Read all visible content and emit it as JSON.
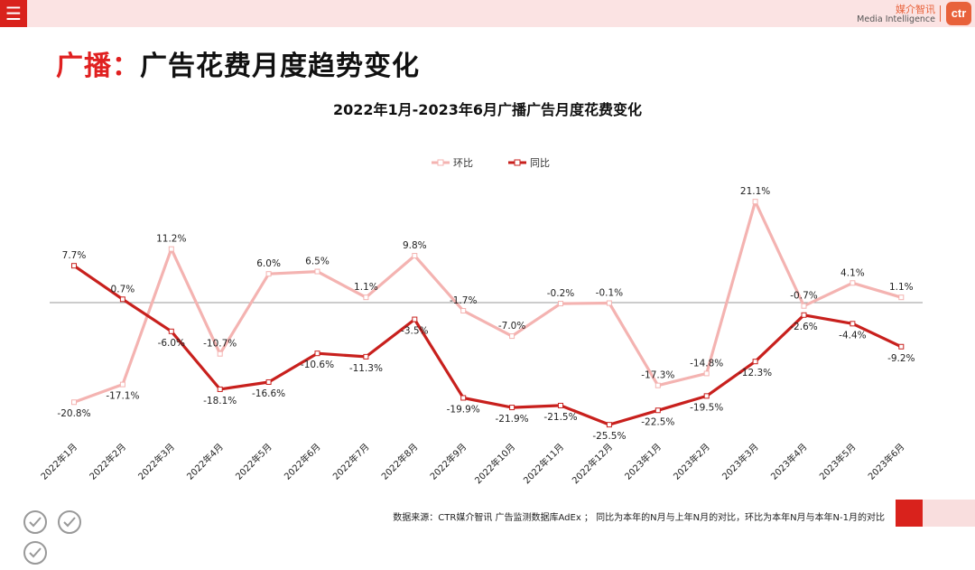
{
  "header": {
    "menu_icon": "menu-icon",
    "brand_cn": "媒介智讯",
    "brand_en": "Media Intelligence",
    "logo_text": "ctr"
  },
  "page": {
    "title_accent": "广播：",
    "title_rest": "广告花费月度趋势变化"
  },
  "footer": {
    "source_note": "数据来源：CTR媒介智讯 广告监测数据库AdEx ； 同比为本年的N月与上年N月的对比，环比为本年N月与本年N-1月的对比"
  },
  "chart_data": {
    "type": "line",
    "title": "2022年1月-2023年6月广播广告月度花费变化",
    "categories": [
      "2022年1月",
      "2022年2月",
      "2022年3月",
      "2022年4月",
      "2022年5月",
      "2022年6月",
      "2022年7月",
      "2022年8月",
      "2022年9月",
      "2022年10月",
      "2022年11月",
      "2022年12月",
      "2023年1月",
      "2023年2月",
      "2023年3月",
      "2023年4月",
      "2023年5月",
      "2023年6月"
    ],
    "series": [
      {
        "name": "环比",
        "color": "#f4b3b1",
        "values": [
          -20.8,
          -17.1,
          11.2,
          -10.7,
          6.0,
          6.5,
          1.1,
          9.8,
          -1.7,
          -7.0,
          -0.2,
          -0.1,
          -17.3,
          -14.8,
          21.1,
          -0.7,
          4.1,
          1.1
        ],
        "labels": [
          "-20.8%",
          "-17.1%",
          "11.2%",
          "-10.7%",
          "6.0%",
          "6.5%",
          "1.1%",
          "9.8%",
          "-1.7%",
          "-7.0%",
          "-0.2%",
          "-0.1%",
          "-17.3%",
          "-14.8%",
          "21.1%",
          "-0.7%",
          "4.1%",
          "1.1%"
        ]
      },
      {
        "name": "同比",
        "color": "#c8201d",
        "values": [
          7.7,
          0.7,
          -6.0,
          -18.1,
          -16.6,
          -10.6,
          -11.3,
          -3.5,
          -19.9,
          -21.9,
          -21.5,
          -25.5,
          -22.5,
          -19.5,
          -12.3,
          -2.6,
          -4.4,
          -9.2
        ],
        "labels": [
          "7.7%",
          "0.7%",
          "-6.0%",
          "-18.1%",
          "-16.6%",
          "-10.6%",
          "-11.3%",
          "-3.5%",
          "-19.9%",
          "-21.9%",
          "-21.5%",
          "-25.5%",
          "-22.5%",
          "-19.5%",
          "-12.3%",
          "-2.6%",
          "-4.4%",
          "-9.2%"
        ]
      }
    ],
    "ylim": [
      -28,
      24
    ],
    "legend_position": "top-center",
    "grid": false
  }
}
